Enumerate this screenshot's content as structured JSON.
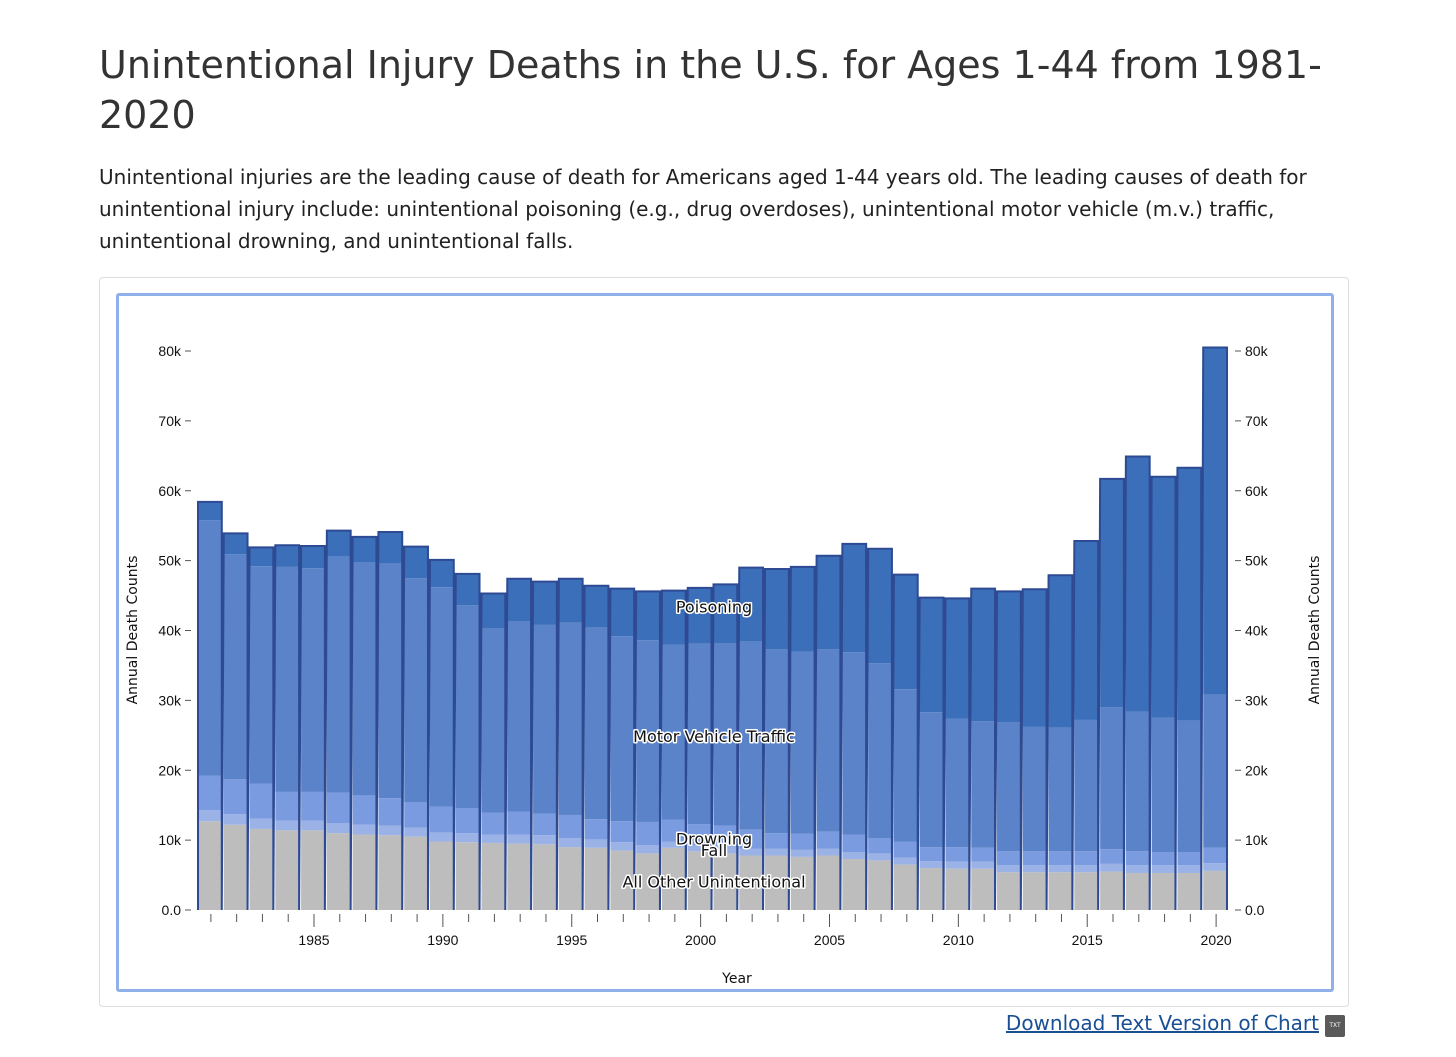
{
  "page": {
    "title": "Unintentional Injury Deaths in the U.S. for Ages 1-44 from 1981-2020",
    "description": "Unintentional injuries are the leading cause of death for Americans aged 1-44 years old. The leading causes of death for unintentional injury include: unintentional poisoning (e.g., drug overdoses), unintentional motor vehicle (m.v.) traffic, unintentional drowning, and unintentional falls.",
    "download_label": "Download Text Version of Chart",
    "download_icon": "txt-file-icon",
    "download_icon_text": "TXT"
  },
  "chart_data": {
    "type": "bar",
    "stacked": true,
    "title": "",
    "xlabel": "Year",
    "ylabel": "Annual Death Counts",
    "ylabel_right": "Annual Death Counts",
    "ylim": [
      0,
      80000
    ],
    "yticks": [
      0,
      10000,
      20000,
      30000,
      40000,
      50000,
      60000,
      70000,
      80000
    ],
    "ytick_labels": [
      "0.0",
      "10k",
      "20k",
      "30k",
      "40k",
      "50k",
      "60k",
      "70k",
      "80k"
    ],
    "xtick_labels": [
      "1985",
      "1990",
      "1995",
      "2000",
      "2005",
      "2010",
      "2015",
      "2020"
    ],
    "categories": [
      1981,
      1982,
      1983,
      1984,
      1985,
      1986,
      1987,
      1988,
      1989,
      1990,
      1991,
      1992,
      1993,
      1994,
      1995,
      1996,
      1997,
      1998,
      1999,
      2000,
      2001,
      2002,
      2003,
      2004,
      2005,
      2006,
      2007,
      2008,
      2009,
      2010,
      2011,
      2012,
      2013,
      2014,
      2015,
      2016,
      2017,
      2018,
      2019,
      2020
    ],
    "series": [
      {
        "name": "All Other Unintentional",
        "color": "#bdbdbd",
        "values": [
          12700,
          12200,
          11600,
          11400,
          11400,
          11000,
          10800,
          10700,
          10500,
          9800,
          9700,
          9600,
          9500,
          9400,
          9000,
          8900,
          8500,
          8100,
          8900,
          8400,
          8100,
          7800,
          7800,
          7600,
          7800,
          7300,
          7100,
          6500,
          6000,
          5900,
          5900,
          5400,
          5400,
          5400,
          5400,
          5500,
          5300,
          5300,
          5300,
          5600
        ]
      },
      {
        "name": "Fall",
        "color": "#9bb2e6",
        "values": [
          1600,
          1500,
          1500,
          1400,
          1400,
          1400,
          1400,
          1400,
          1300,
          1300,
          1300,
          1200,
          1300,
          1300,
          1300,
          1200,
          1200,
          1200,
          900,
          900,
          1000,
          1000,
          1000,
          1000,
          1000,
          1000,
          1000,
          1000,
          1000,
          1000,
          1000,
          1000,
          1000,
          1000,
          1000,
          1100,
          1100,
          1100,
          1100,
          1100
        ]
      },
      {
        "name": "Drowning",
        "color": "#7b9be0",
        "values": [
          4900,
          5000,
          5000,
          4100,
          4100,
          4400,
          4200,
          3900,
          3600,
          3700,
          3600,
          3100,
          3300,
          3100,
          3300,
          2900,
          3000,
          3300,
          3100,
          3000,
          3000,
          2700,
          2200,
          2300,
          2400,
          2500,
          2200,
          2300,
          2000,
          2100,
          2000,
          2000,
          2000,
          2000,
          2000,
          2100,
          2000,
          1900,
          1900,
          2200
        ]
      },
      {
        "name": "Motor Vehicle Traffic",
        "color": "#5b83c9",
        "values": [
          36600,
          32200,
          31100,
          32200,
          32000,
          33800,
          33400,
          33600,
          32100,
          31400,
          29000,
          26400,
          27200,
          27000,
          27500,
          27400,
          26500,
          26000,
          25100,
          25800,
          26000,
          26900,
          26300,
          26100,
          26100,
          26100,
          25000,
          21800,
          19300,
          18400,
          18100,
          18500,
          17800,
          17700,
          18800,
          20300,
          20000,
          19200,
          18800,
          21900
        ]
      },
      {
        "name": "Poisoning",
        "color": "#3c6fb9",
        "values": [
          2600,
          3000,
          2700,
          3100,
          3200,
          3700,
          3600,
          4500,
          4500,
          3900,
          4500,
          5000,
          6100,
          6200,
          6300,
          6000,
          6800,
          7000,
          7700,
          8000,
          8500,
          10600,
          11500,
          12100,
          13400,
          15500,
          16400,
          16400,
          16400,
          17200,
          19000,
          18700,
          19700,
          21800,
          25600,
          32700,
          36500,
          34500,
          36200,
          49700
        ]
      }
    ],
    "series_labels": [
      {
        "text": "Poisoning"
      },
      {
        "text": "Motor Vehicle Traffic"
      },
      {
        "text": "Drowning"
      },
      {
        "text": "Fall"
      },
      {
        "text": "All Other Unintentional"
      }
    ],
    "grid": false,
    "legend": "inline labels",
    "highlight_outline_color": "#2d4a93"
  }
}
